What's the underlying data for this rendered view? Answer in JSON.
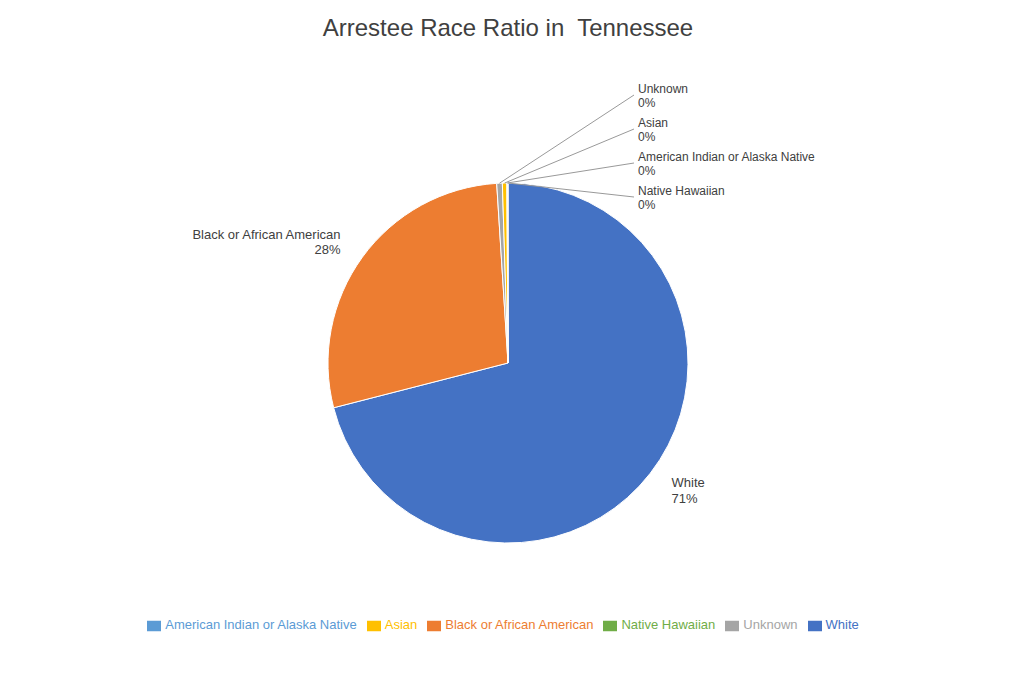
{
  "chart_data": {
    "type": "pie",
    "title": "Arrestee Race Ratio in  Tennessee",
    "categories": [
      "White",
      "Black or African American",
      "Unknown",
      "Asian",
      "American Indian or Alaska Native",
      "Native Hawaiian"
    ],
    "values": [
      71,
      28,
      0.5,
      0.4,
      0.07,
      0.03
    ],
    "value_labels": [
      "71%",
      "28%",
      "0%",
      "0%",
      "0%",
      "0%"
    ],
    "colors": [
      "#4472C4",
      "#ED7D31",
      "#A5A5A5",
      "#FFC000",
      "#5B9BD5",
      "#70AD47"
    ],
    "legend": "bottom",
    "data_labels": true
  }
}
